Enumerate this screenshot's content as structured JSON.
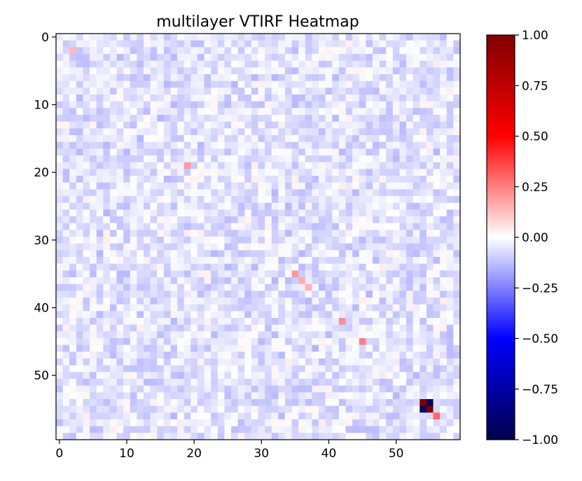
{
  "chart_data": {
    "type": "heatmap",
    "title": "multilayer VTIRF Heatmap",
    "xlabel": "",
    "ylabel": "",
    "rows": 60,
    "cols": 60,
    "x_ticks": [
      0,
      10,
      20,
      30,
      40,
      50
    ],
    "y_ticks": [
      0,
      10,
      20,
      30,
      40,
      50
    ],
    "colorbar": {
      "colormap": "seismic",
      "vmin": -1.0,
      "vmax": 1.0,
      "ticks": [
        1.0,
        0.75,
        0.5,
        0.25,
        0.0,
        -0.25,
        -0.5,
        -0.75,
        -1.0
      ],
      "tick_labels": [
        "1.00",
        "0.75",
        "0.50",
        "0.25",
        "0.00",
        "−0.25",
        "−0.50",
        "−0.75",
        "−1.00"
      ]
    },
    "background_value_range": [
      -0.12,
      0.12
    ],
    "notable_cells": [
      {
        "row": 2,
        "col": 2,
        "value": 0.14
      },
      {
        "row": 19,
        "col": 19,
        "value": 0.2
      },
      {
        "row": 35,
        "col": 35,
        "value": 0.2
      },
      {
        "row": 36,
        "col": 36,
        "value": 0.16
      },
      {
        "row": 37,
        "col": 37,
        "value": 0.15
      },
      {
        "row": 42,
        "col": 42,
        "value": 0.22
      },
      {
        "row": 45,
        "col": 45,
        "value": 0.25
      },
      {
        "row": 54,
        "col": 54,
        "value": 1.0
      },
      {
        "row": 54,
        "col": 55,
        "value": -0.95
      },
      {
        "row": 55,
        "col": 54,
        "value": -0.95
      },
      {
        "row": 55,
        "col": 55,
        "value": 1.0
      },
      {
        "row": 56,
        "col": 56,
        "value": 0.3
      }
    ],
    "colors": {
      "neg_extreme": "#00004c",
      "neg": "#0000ff",
      "zero": "#ffffff",
      "pos": "#ff0000",
      "pos_extreme": "#800000"
    }
  }
}
